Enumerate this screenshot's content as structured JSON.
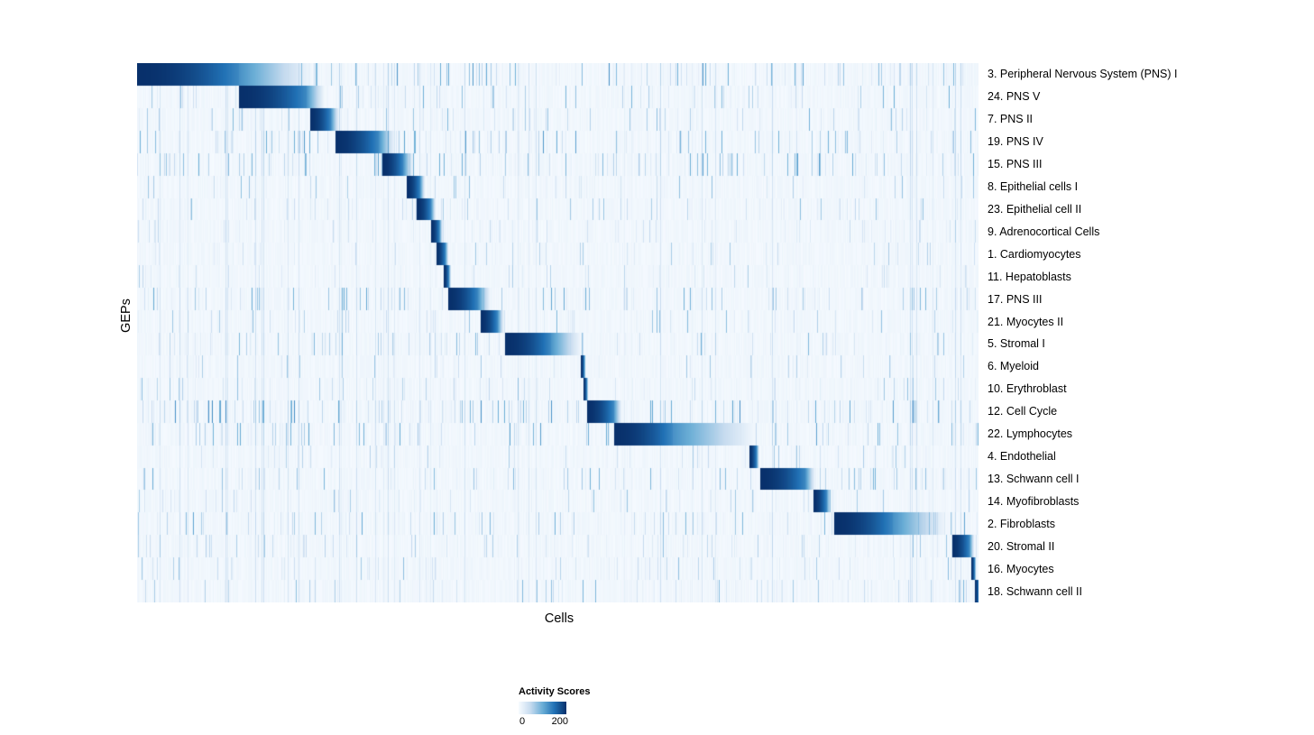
{
  "chart_data": {
    "type": "heatmap",
    "xlabel": "Cells",
    "ylabel": "GEPs",
    "colorscale": {
      "label": "Activity Scores",
      "min": 0,
      "max": 200,
      "min_label": "0",
      "max_label": "200",
      "stops": [
        "#f7fbff",
        "#c6dbef",
        "#6baed6",
        "#2171b5",
        "#08306b"
      ]
    },
    "layout": {
      "row_labels_position": "right",
      "legend_position": "bottom-center",
      "grid": false,
      "diagonal_block_structure": true
    },
    "rows": [
      {
        "label": "3. Peripheral Nervous System (PNS) I",
        "block_start": 0.0,
        "block_end": 0.121,
        "fade": 0.09,
        "noise": 0.7
      },
      {
        "label": "24. PNS V",
        "block_start": 0.121,
        "block_end": 0.201,
        "fade": 0.022,
        "noise": 0.5
      },
      {
        "label": "7. PNS II",
        "block_start": 0.205,
        "block_end": 0.23,
        "fade": 0.01,
        "noise": 0.45
      },
      {
        "label": "19. PNS IV",
        "block_start": 0.235,
        "block_end": 0.287,
        "fade": 0.02,
        "noise": 0.65
      },
      {
        "label": "15. PNS III",
        "block_start": 0.291,
        "block_end": 0.316,
        "fade": 0.012,
        "noise": 0.6
      },
      {
        "label": "8. Epithelial cells I",
        "block_start": 0.32,
        "block_end": 0.336,
        "fade": 0.006,
        "noise": 0.3
      },
      {
        "label": "23. Epithelial cell II",
        "block_start": 0.332,
        "block_end": 0.349,
        "fade": 0.006,
        "noise": 0.35
      },
      {
        "label": "9. Adrenocortical Cells",
        "block_start": 0.349,
        "block_end": 0.359,
        "fade": 0.004,
        "noise": 0.2
      },
      {
        "label": "1. Cardiomyocytes",
        "block_start": 0.355,
        "block_end": 0.366,
        "fade": 0.004,
        "noise": 0.25
      },
      {
        "label": "11. Hepatoblasts",
        "block_start": 0.364,
        "block_end": 0.37,
        "fade": 0.003,
        "noise": 0.2
      },
      {
        "label": "17. PNS III",
        "block_start": 0.369,
        "block_end": 0.405,
        "fade": 0.015,
        "noise": 0.55
      },
      {
        "label": "21. Myocytes II",
        "block_start": 0.408,
        "block_end": 0.428,
        "fade": 0.008,
        "noise": 0.4
      },
      {
        "label": "5. Stromal I",
        "block_start": 0.437,
        "block_end": 0.491,
        "fade": 0.038,
        "noise": 0.5
      },
      {
        "label": "6. Myeloid",
        "block_start": 0.527,
        "block_end": 0.531,
        "fade": 0.002,
        "noise": 0.25
      },
      {
        "label": "10. Erythroblast",
        "block_start": 0.53,
        "block_end": 0.534,
        "fade": 0.002,
        "noise": 0.3
      },
      {
        "label": "12. Cell Cycle",
        "block_start": 0.534,
        "block_end": 0.566,
        "fade": 0.01,
        "noise": 0.8
      },
      {
        "label": "22. Lymphocytes",
        "block_start": 0.566,
        "block_end": 0.636,
        "fade": 0.102,
        "noise": 0.6
      },
      {
        "label": "4. Endothelial",
        "block_start": 0.727,
        "block_end": 0.736,
        "fade": 0.003,
        "noise": 0.25
      },
      {
        "label": "13. Schwann cell I",
        "block_start": 0.74,
        "block_end": 0.794,
        "fade": 0.012,
        "noise": 0.5
      },
      {
        "label": "14. Myofibroblasts",
        "block_start": 0.803,
        "block_end": 0.819,
        "fade": 0.006,
        "noise": 0.3
      },
      {
        "label": "2. Fibroblasts",
        "block_start": 0.828,
        "block_end": 0.898,
        "fade": 0.066,
        "noise": 0.55
      },
      {
        "label": "20. Stromal II",
        "block_start": 0.968,
        "block_end": 0.989,
        "fade": 0.006,
        "noise": 0.3
      },
      {
        "label": "16. Myocytes",
        "block_start": 0.991,
        "block_end": 0.995,
        "fade": 0.002,
        "noise": 0.35
      },
      {
        "label": "18. Schwann cell II",
        "block_start": 0.995,
        "block_end": 1.0,
        "fade": 0.0,
        "noise": 0.4
      }
    ],
    "render": {
      "seed": 11,
      "n_cols": 933,
      "background_min": 0.01,
      "background_max": 0.05,
      "global_streak_prob": 0.04
    }
  }
}
